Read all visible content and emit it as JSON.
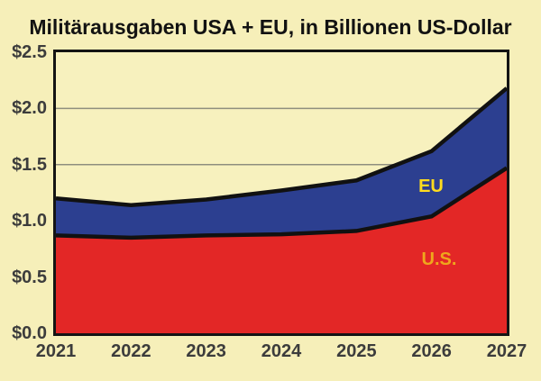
{
  "title": "Militärausgaben USA + EU, in Billionen US-Dollar",
  "colors": {
    "background": "#F6EFB9",
    "plot_background": "#F7F1BE",
    "frame": "#141414",
    "boundary_line": "#111111",
    "gridline": "#8F8F7E",
    "axis_text": "#3C3C3C",
    "title_text": "#121212",
    "eu_label": "#FFDC1E",
    "us_label": "#EFA71C",
    "us_area": "#E32726",
    "eu_area": "#2C3F90"
  },
  "labels": {
    "eu": "EU",
    "us": "U.S."
  },
  "chart_data": {
    "type": "area",
    "stacked": true,
    "title": "Militärausgaben USA + EU, in Billionen US-Dollar",
    "xlabel": "",
    "ylabel": "",
    "x": [
      2021,
      2022,
      2023,
      2024,
      2025,
      2026,
      2027
    ],
    "series": [
      {
        "name": "U.S.",
        "color": "#E32726",
        "values": [
          0.87,
          0.85,
          0.87,
          0.88,
          0.91,
          1.04,
          1.47
        ]
      },
      {
        "name": "EU",
        "color": "#2C3F90",
        "values": [
          0.33,
          0.29,
          0.32,
          0.39,
          0.45,
          0.58,
          0.71
        ]
      }
    ],
    "stacked_totals": [
      1.2,
      1.14,
      1.19,
      1.27,
      1.36,
      1.62,
      2.18
    ],
    "ylim": [
      0,
      2.5
    ],
    "ytick_values": [
      0,
      0.5,
      1.0,
      1.5,
      2.0,
      2.5
    ],
    "ytick_labels": [
      "$0.0",
      "$0.5",
      "$1.0",
      "$1.5",
      "$2.0",
      "$2.5"
    ],
    "grid": true,
    "legend_position": "inline-labels"
  }
}
